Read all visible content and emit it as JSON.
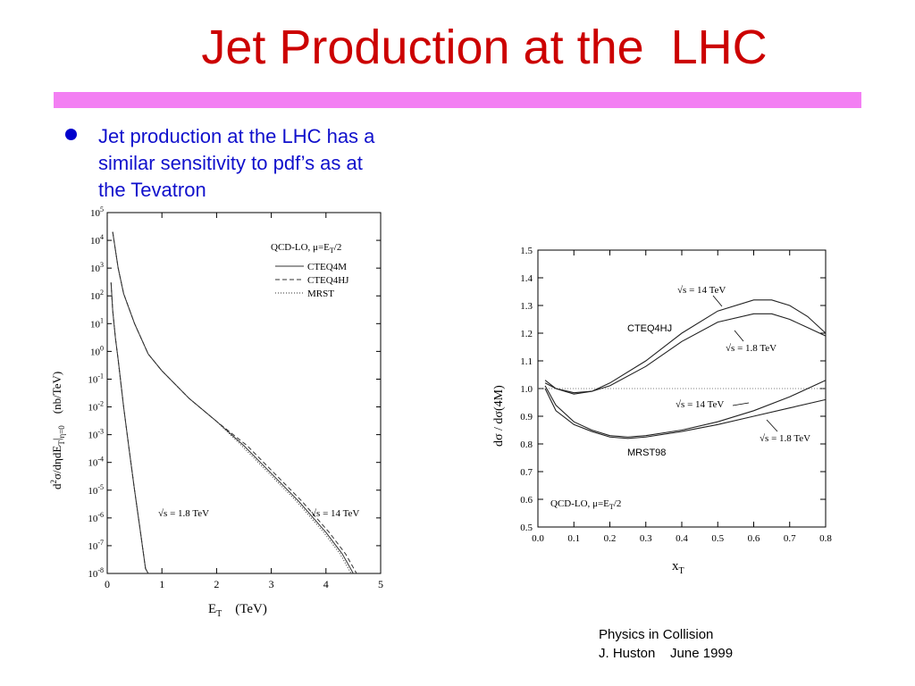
{
  "slide": {
    "title": "Jet Production at the  LHC",
    "bullet_lines": [
      "Jet production at the LHC has a",
      "similar sensitivity to pdf’s as at",
      "the Tevatron"
    ],
    "footer_lines": [
      "Physics in Collision",
      "J. Huston    June 1999"
    ],
    "colors": {
      "title": "#cc0000",
      "rule": "#f37ff3",
      "bullet": "#1010cc"
    }
  },
  "chart_data": [
    {
      "type": "line",
      "title": "",
      "xlabel": "E_T   (TeV)",
      "ylabel": "d²σ/dηdE_T|η=0   (nb/TeV)",
      "xlim": [
        0,
        5
      ],
      "ylim": [
        1e-08,
        100000.0
      ],
      "yscale": "log",
      "xticks": [
        "0",
        "1",
        "2",
        "3",
        "4",
        "5"
      ],
      "yticks": [
        "10^5",
        "10^4",
        "10^3",
        "10^2",
        "10^1",
        "10^0",
        "10^-1",
        "10^-2",
        "10^-3",
        "10^-4",
        "10^-5",
        "10^-6",
        "10^-7",
        "10^-8"
      ],
      "legend_title": "QCD-LO, μ=E_T/2",
      "legend": [
        {
          "name": "CTEQ4M",
          "style": "solid"
        },
        {
          "name": "CTEQ4HJ",
          "style": "dashed"
        },
        {
          "name": "MRST",
          "style": "dotted"
        }
      ],
      "legend_position": "top-right",
      "annotations": [
        "√s = 1.8 TeV",
        "√s = 14 TeV"
      ],
      "series": [
        {
          "name": "√s = 1.8 TeV",
          "x": [
            0.07,
            0.1,
            0.15,
            0.2,
            0.3,
            0.4,
            0.5,
            0.6,
            0.7,
            0.75
          ],
          "y": [
            300,
            30,
            3,
            0.5,
            0.01,
            0.0003,
            1e-05,
            4e-07,
            1.5e-08,
            1e-08
          ]
        },
        {
          "name": "√s = 14 TeV",
          "x": [
            0.1,
            0.2,
            0.3,
            0.5,
            0.75,
            1.0,
            1.5,
            2.0,
            2.5,
            3.0,
            3.5,
            4.0,
            4.3,
            4.5
          ],
          "y": [
            20000,
            1000,
            120,
            10,
            0.8,
            0.2,
            0.02,
            0.003,
            0.0004,
            4e-05,
            4e-06,
            3e-07,
            5e-08,
            1e-08
          ]
        }
      ]
    },
    {
      "type": "line",
      "title": "",
      "xlabel": "x_T",
      "ylabel": "dσ / dσ(4M)",
      "xlim": [
        0.0,
        0.8
      ],
      "ylim": [
        0.5,
        1.5
      ],
      "xticks": [
        "0.0",
        "0.1",
        "0.2",
        "0.3",
        "0.4",
        "0.5",
        "0.6",
        "0.7",
        "0.8"
      ],
      "yticks": [
        "0.5",
        "0.6",
        "0.7",
        "0.8",
        "0.9",
        "1.0",
        "1.1",
        "1.2",
        "1.3",
        "1.4",
        "1.5"
      ],
      "reference_line": 1.0,
      "labels": [
        "CTEQ4HJ",
        "MRST98",
        "QCD-LO, μ=E_T/2"
      ],
      "annotations": [
        "√s = 14 TeV",
        "√s = 1.8 TeV",
        "√s = 14 TeV",
        "√s = 1.8 TeV"
      ],
      "series": [
        {
          "name": "CTEQ4HJ √s = 14 TeV",
          "x": [
            0.02,
            0.05,
            0.1,
            0.15,
            0.2,
            0.3,
            0.4,
            0.5,
            0.6,
            0.65,
            0.7,
            0.75,
            0.8
          ],
          "y": [
            1.03,
            1.0,
            0.98,
            0.99,
            1.02,
            1.1,
            1.2,
            1.28,
            1.32,
            1.32,
            1.3,
            1.26,
            1.2
          ]
        },
        {
          "name": "CTEQ4HJ √s = 1.8 TeV",
          "x": [
            0.02,
            0.05,
            0.1,
            0.15,
            0.2,
            0.3,
            0.4,
            0.5,
            0.6,
            0.65,
            0.7,
            0.75,
            0.8
          ],
          "y": [
            1.02,
            1.0,
            0.985,
            0.99,
            1.01,
            1.08,
            1.17,
            1.24,
            1.27,
            1.27,
            1.25,
            1.22,
            1.19
          ]
        },
        {
          "name": "MRST98 √s = 14 TeV",
          "x": [
            0.02,
            0.05,
            0.1,
            0.15,
            0.2,
            0.25,
            0.3,
            0.4,
            0.5,
            0.6,
            0.7,
            0.8
          ],
          "y": [
            1.01,
            0.94,
            0.88,
            0.85,
            0.83,
            0.825,
            0.83,
            0.85,
            0.88,
            0.92,
            0.97,
            1.03
          ]
        },
        {
          "name": "MRST98 √s = 1.8 TeV",
          "x": [
            0.02,
            0.05,
            0.1,
            0.15,
            0.2,
            0.25,
            0.3,
            0.4,
            0.5,
            0.6,
            0.7,
            0.8
          ],
          "y": [
            1.0,
            0.92,
            0.87,
            0.845,
            0.825,
            0.82,
            0.825,
            0.845,
            0.87,
            0.9,
            0.93,
            0.96
          ]
        }
      ]
    }
  ]
}
